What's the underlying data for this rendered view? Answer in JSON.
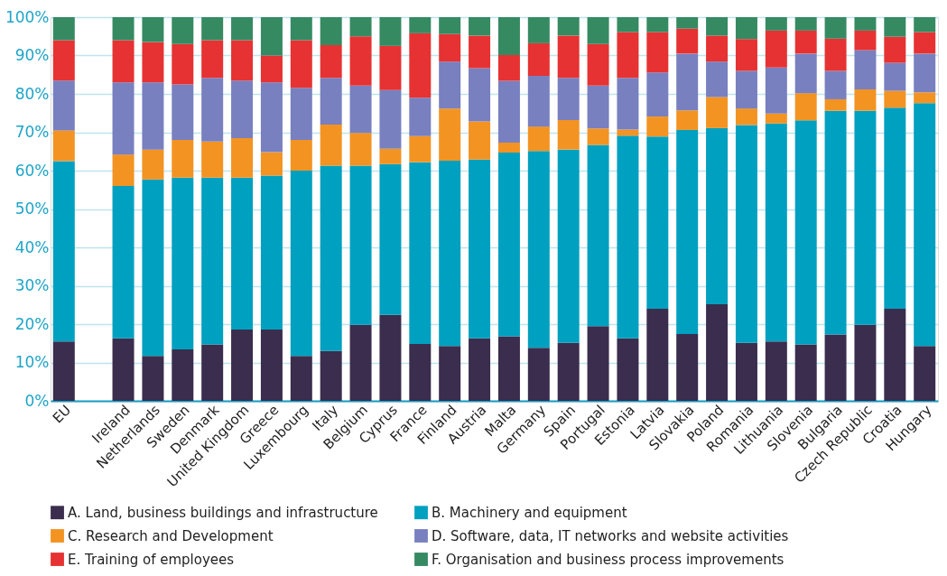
{
  "chart_data": {
    "type": "bar",
    "stacked": true,
    "categories": [
      "EU",
      null,
      "Ireland",
      "Netherlands",
      "Sweden",
      "Denmark",
      "United Kingdom",
      "Greece",
      "Luxembourg",
      "Italy",
      "Belgium",
      "Cyprus",
      "France",
      "Finland",
      "Austria",
      "Malta",
      "Germany",
      "Spain",
      "Portugal",
      "Estonia",
      "Latvia",
      "Slovakia",
      "Poland",
      "Romania",
      "Lithuania",
      "Slovenia",
      "Bulgaria",
      "Czech Republic",
      "Croatia",
      "Hungary"
    ],
    "series": [
      {
        "name": "A. Land, business buildings and infrastructure",
        "color": "#3b2d4d",
        "values": [
          15.5,
          null,
          16.3,
          11.7,
          13.4,
          14.7,
          18.6,
          18.6,
          11.7,
          13,
          19.8,
          22.4,
          14.8,
          14.3,
          16.3,
          16.8,
          13.8,
          15.1,
          19.5,
          16.3,
          24,
          17.4,
          25.2,
          15.1,
          15.5,
          14.7,
          17.3,
          19.8,
          24,
          14.3
        ]
      },
      {
        "name": "B. Machinery and equipment",
        "color": "#00a0c0",
        "values": [
          47,
          null,
          39.7,
          46,
          44.8,
          43.5,
          39.6,
          40.1,
          48.3,
          48.3,
          41.5,
          39.3,
          47.4,
          48.3,
          46.6,
          47.9,
          51.3,
          50.4,
          47.2,
          52.8,
          44.9,
          53.2,
          45.9,
          56.8,
          56.8,
          58.4,
          58.3,
          55.8,
          52.4,
          63.3
        ]
      },
      {
        "name": "C. Research and Development",
        "color": "#f39322",
        "values": [
          8,
          null,
          8.2,
          7.8,
          9.8,
          9.4,
          10.3,
          6.1,
          8,
          10.7,
          8.5,
          4,
          6.8,
          13.6,
          9.9,
          2.6,
          6.4,
          7.7,
          4.3,
          1.6,
          5.2,
          5.1,
          8.1,
          4.3,
          2.6,
          7.1,
          3,
          5.6,
          4.4,
          2.8
        ]
      },
      {
        "name": "D. Software, data, IT networks and website activities",
        "color": "#7880c0",
        "values": [
          13,
          null,
          18.8,
          17.5,
          14.5,
          16.6,
          15,
          18.2,
          13.6,
          12.2,
          12.4,
          15.3,
          10,
          12.2,
          13.9,
          16.1,
          13.2,
          11,
          11.2,
          13.5,
          11.5,
          14.8,
          9.2,
          9.8,
          12,
          10.3,
          7.4,
          10.2,
          7.3,
          10.1
        ]
      },
      {
        "name": "E. Training of employees",
        "color": "#e63232",
        "values": [
          10.5,
          null,
          11,
          10.5,
          10.5,
          9.8,
          10.5,
          7,
          12.4,
          8.5,
          12.8,
          11.5,
          16.8,
          7.2,
          8.5,
          6.7,
          8.5,
          11,
          10.8,
          11.9,
          10.5,
          6.5,
          6.8,
          8.3,
          9.6,
          6,
          8.4,
          5.1,
          6.8,
          5.6
        ]
      },
      {
        "name": "F. Organisation and business process improvements",
        "color": "#368a62",
        "values": [
          6,
          null,
          6,
          6.5,
          7,
          6,
          6,
          10,
          6,
          7.3,
          5,
          7.5,
          4.2,
          4.4,
          4.8,
          9.9,
          6.8,
          4.8,
          7,
          3.9,
          3.9,
          3,
          4.8,
          5.7,
          3.5,
          3.5,
          5.6,
          3.5,
          5.1,
          3.9
        ]
      }
    ],
    "ylim": [
      0,
      100
    ],
    "yticks": [
      {
        "value": 0,
        "label": "0%"
      },
      {
        "value": 10,
        "label": "10%"
      },
      {
        "value": 20,
        "label": "20%"
      },
      {
        "value": 30,
        "label": "30%"
      },
      {
        "value": 40,
        "label": "40%"
      },
      {
        "value": 50,
        "label": "50%"
      },
      {
        "value": 60,
        "label": "60%"
      },
      {
        "value": 70,
        "label": "70%"
      },
      {
        "value": 80,
        "label": "80%"
      },
      {
        "value": 90,
        "label": "90%"
      },
      {
        "value": 100,
        "label": "100%"
      }
    ],
    "grid": "y",
    "legend": "bottom"
  }
}
